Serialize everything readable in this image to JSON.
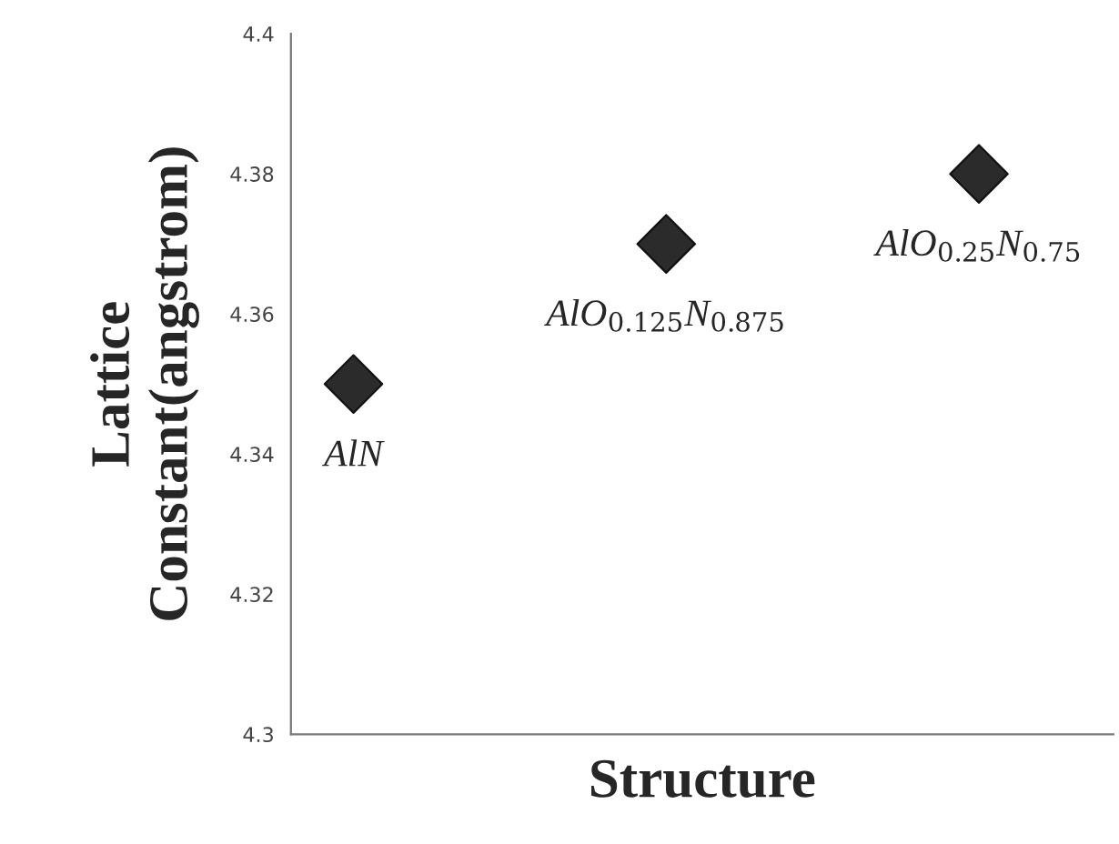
{
  "chart_data": {
    "type": "scatter",
    "ylabel": "Lattice\nConstant(angstrom)",
    "xlabel": "Structure",
    "categories": [
      null,
      null,
      null
    ],
    "series": [
      {
        "color": "#2b2b2b",
        "values": [
          4.35,
          4.37,
          4.38
        ]
      }
    ],
    "marker": "diamond",
    "ylim": [
      4.3,
      4.4
    ],
    "yticks": [
      4.3,
      4.32,
      4.34,
      4.36,
      4.38,
      4.4
    ],
    "annotations": [
      {
        "text": "AlN",
        "y": 4.35
      },
      {
        "text": "AlO$_{0.125}$N$_{0.875}$",
        "y": 4.37
      },
      {
        "text": "AlO$_{0.25}$N$_{0.75}$",
        "y": 4.38
      }
    ],
    "grid": false,
    "legend": false
  }
}
